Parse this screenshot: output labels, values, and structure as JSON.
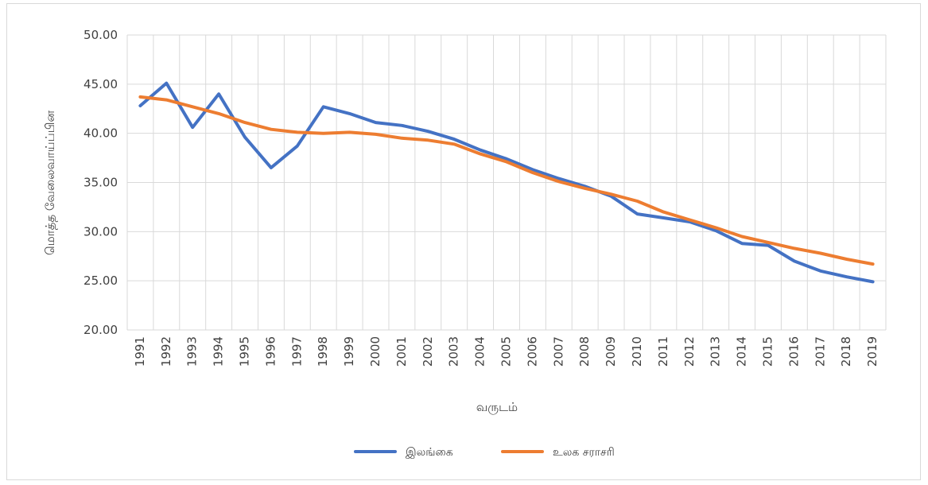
{
  "chart_data": {
    "type": "line",
    "xlabel": "வருடம்",
    "ylabel": "மொத்த வேலைவாய்ப்பின",
    "ylim": [
      20,
      50
    ],
    "ytick_step": 5,
    "yticks": [
      "20.00",
      "25.00",
      "30.00",
      "35.00",
      "40.00",
      "45.00",
      "50.00"
    ],
    "grid": true,
    "legend_position": "bottom",
    "categories": [
      "1991",
      "1992",
      "1993",
      "1994",
      "1995",
      "1996",
      "1997",
      "1998",
      "1999",
      "2000",
      "2001",
      "2002",
      "2003",
      "2004",
      "2005",
      "2006",
      "2007",
      "2008",
      "2009",
      "2010",
      "2011",
      "2012",
      "2013",
      "2014",
      "2015",
      "2016",
      "2017",
      "2018",
      "2019"
    ],
    "series": [
      {
        "name": "இலங்கை",
        "color": "#4472c4",
        "values": [
          42.8,
          45.1,
          40.6,
          44.0,
          39.6,
          36.5,
          38.7,
          42.7,
          42.0,
          41.1,
          40.8,
          40.2,
          39.4,
          38.3,
          37.4,
          36.3,
          35.4,
          34.6,
          33.6,
          31.8,
          31.4,
          31.0,
          30.1,
          28.8,
          28.6,
          27.0,
          26.0,
          25.4,
          24.9
        ]
      },
      {
        "name": "உலக சராசரி",
        "color": "#ed7d31",
        "values": [
          43.7,
          43.4,
          42.7,
          42.0,
          41.1,
          40.4,
          40.1,
          40.0,
          40.1,
          39.9,
          39.5,
          39.3,
          38.9,
          37.9,
          37.1,
          36.0,
          35.1,
          34.4,
          33.8,
          33.1,
          32.0,
          31.2,
          30.4,
          29.5,
          28.9,
          28.3,
          27.8,
          27.2,
          26.7
        ]
      }
    ]
  }
}
